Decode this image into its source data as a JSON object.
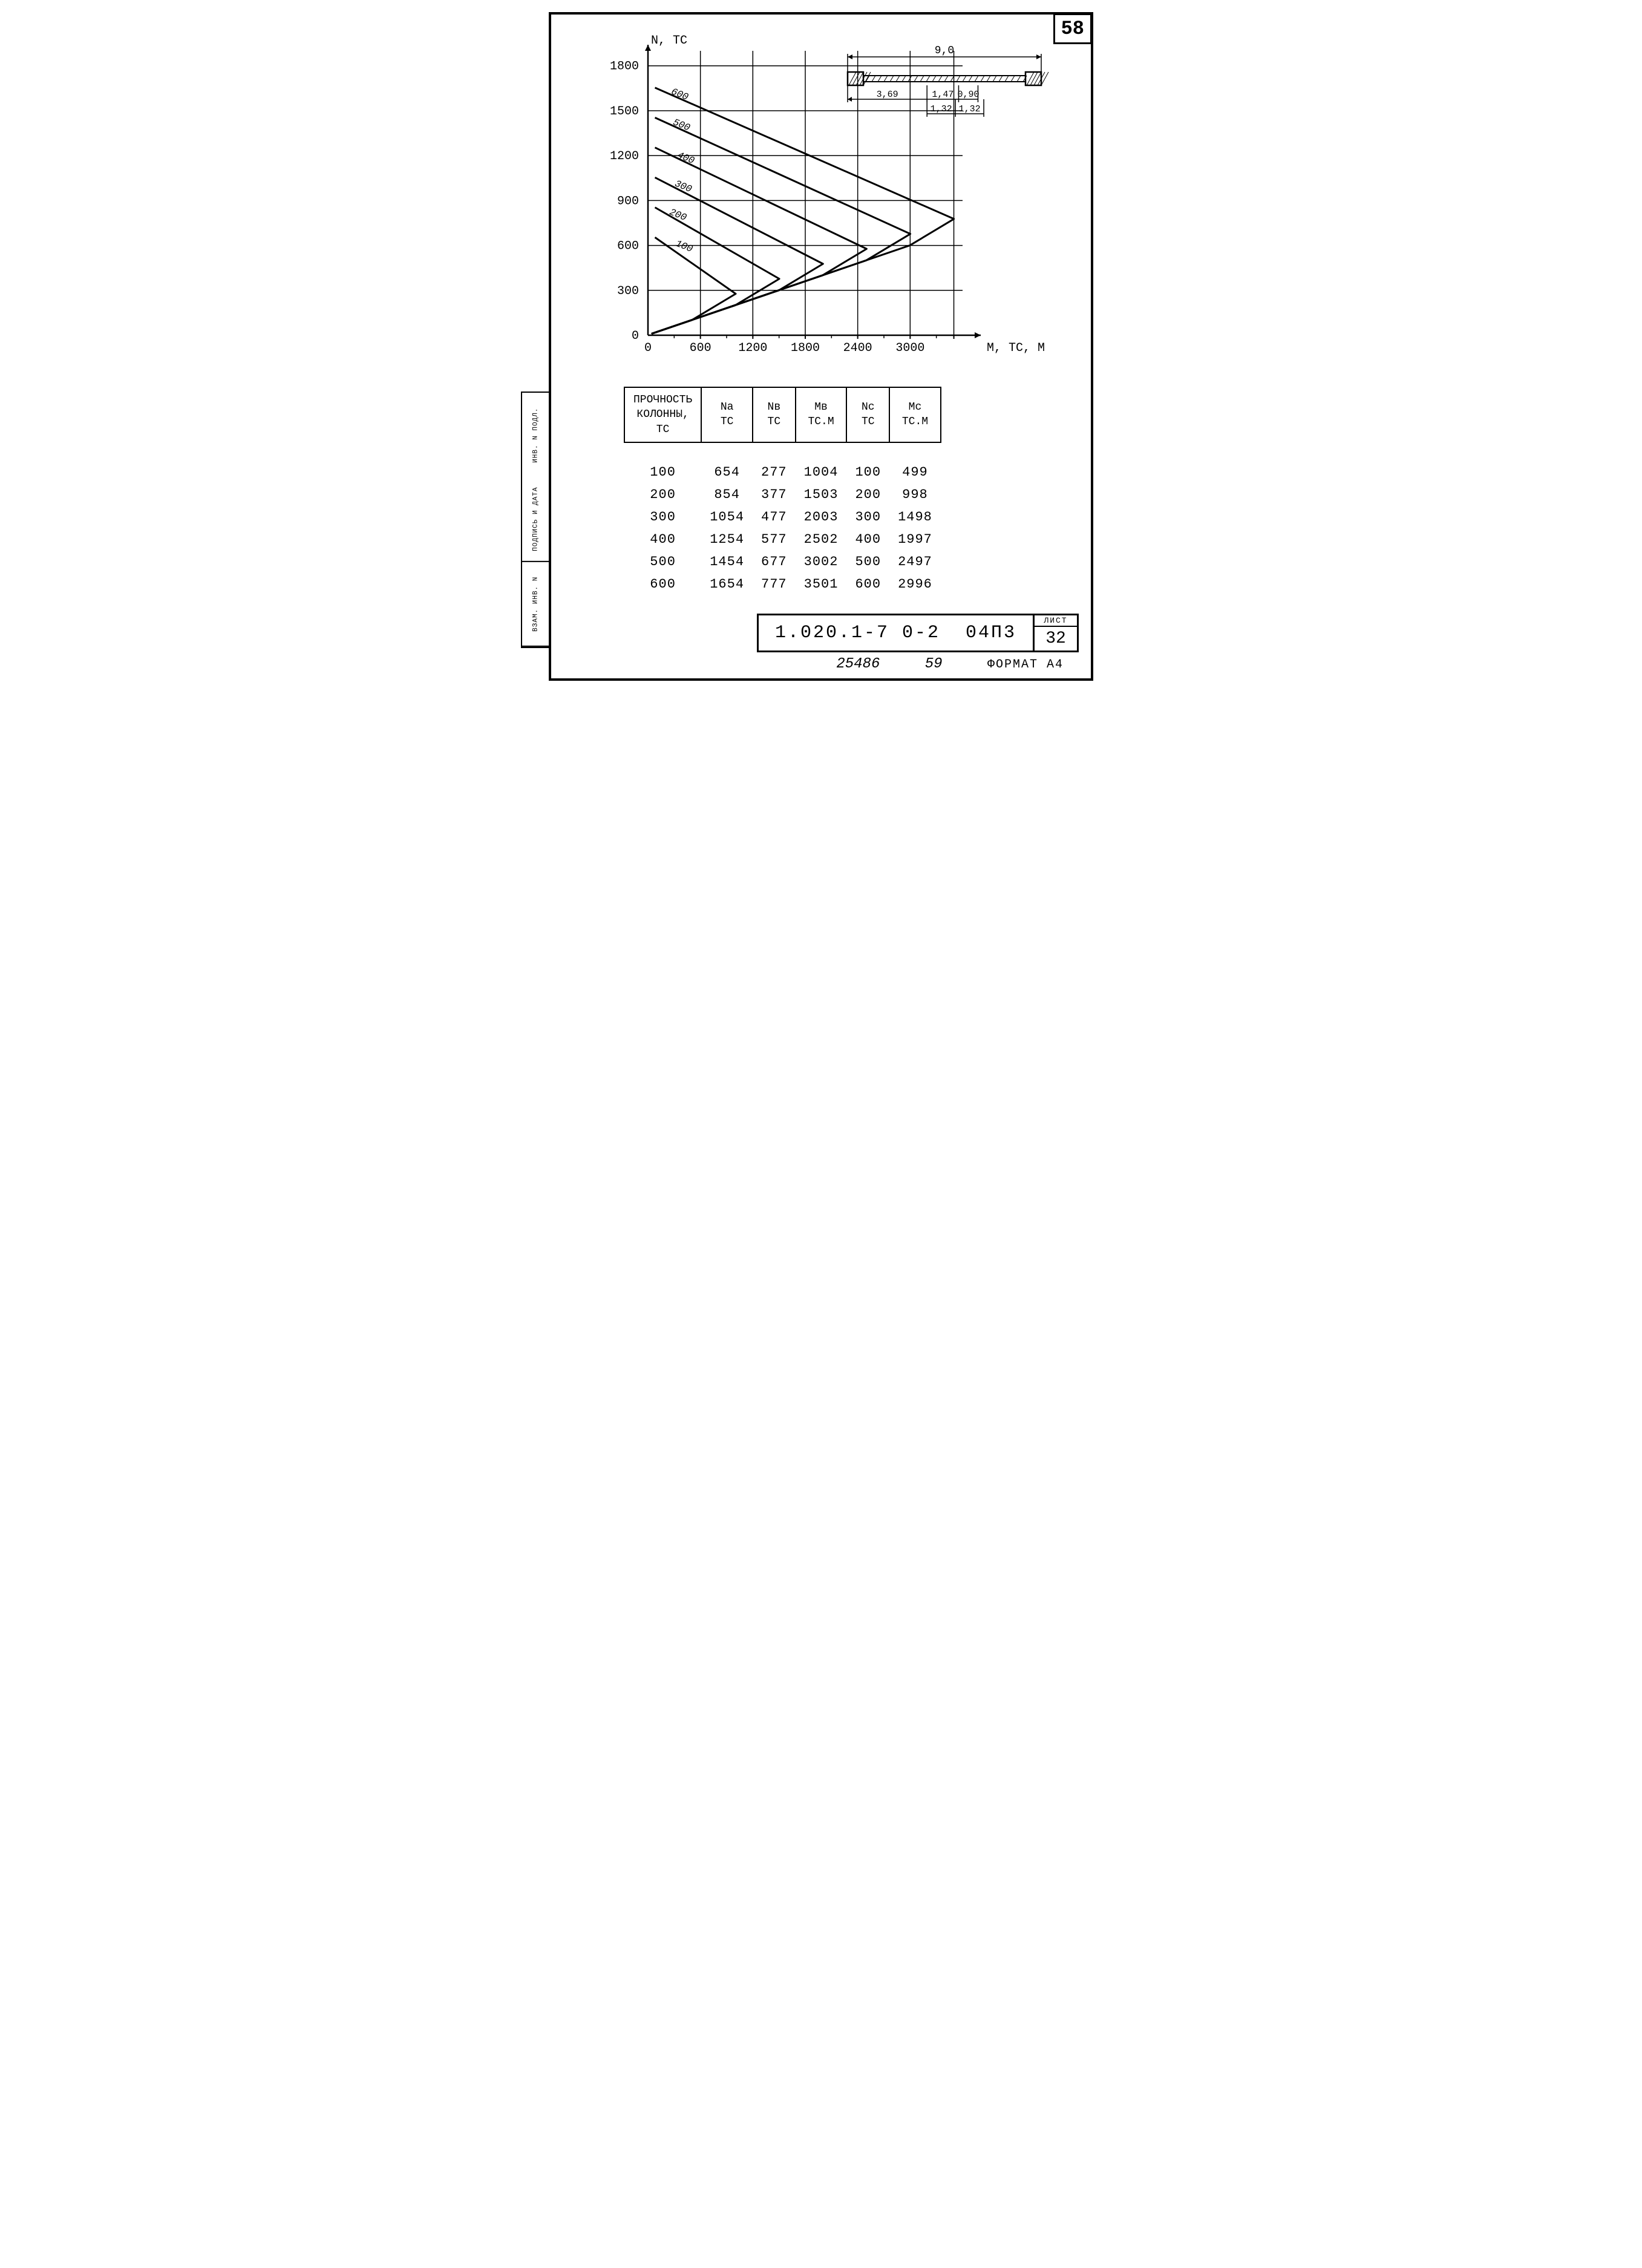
{
  "page_number_top": "58",
  "left_stamps": [
    "ИНВ. N ПОДЛ.",
    "ПОДПИСЬ И ДАТА",
    "ВЗАМ. ИНВ. N"
  ],
  "chart": {
    "y_label": "N, ТС",
    "x_label": "М, ТС, М",
    "y_ticks": [
      "0",
      "300",
      "600",
      "900",
      "1200",
      "1500",
      "1800"
    ],
    "x_ticks": [
      "0",
      "600",
      "1200",
      "1800",
      "2400",
      "3000"
    ],
    "xlim": [
      0,
      3600
    ],
    "ylim": [
      0,
      1900
    ],
    "grid_y": [
      300,
      600,
      900,
      1200,
      1500,
      1800
    ],
    "grid_x": [
      600,
      1200,
      1800,
      2400,
      3000,
      3500
    ],
    "line_color": "#000000",
    "line_width": 3,
    "bg_color": "#ffffff",
    "curves": [
      {
        "label": "100",
        "pts": [
          [
            80,
            654
          ],
          [
            1004,
            277
          ],
          [
            499,
            100
          ],
          [
            40,
            10
          ]
        ],
        "label_at": [
          310,
          600
        ]
      },
      {
        "label": "200",
        "pts": [
          [
            80,
            854
          ],
          [
            1503,
            377
          ],
          [
            998,
            200
          ],
          [
            40,
            10
          ]
        ],
        "label_at": [
          240,
          810
        ]
      },
      {
        "label": "300",
        "pts": [
          [
            80,
            1054
          ],
          [
            2003,
            477
          ],
          [
            1498,
            300
          ],
          [
            40,
            10
          ]
        ],
        "label_at": [
          300,
          1000
        ]
      },
      {
        "label": "400",
        "pts": [
          [
            80,
            1254
          ],
          [
            2502,
            577
          ],
          [
            1997,
            400
          ],
          [
            40,
            10
          ]
        ],
        "label_at": [
          330,
          1190
        ]
      },
      {
        "label": "500",
        "pts": [
          [
            80,
            1454
          ],
          [
            3002,
            677
          ],
          [
            2497,
            500
          ],
          [
            40,
            10
          ]
        ],
        "label_at": [
          280,
          1410
        ]
      },
      {
        "label": "600",
        "pts": [
          [
            80,
            1654
          ],
          [
            3501,
            777
          ],
          [
            2996,
            600
          ],
          [
            40,
            10
          ]
        ],
        "label_at": [
          260,
          1615
        ]
      }
    ]
  },
  "diagram": {
    "total": "9,0",
    "dims_top": [
      "3,69",
      "1,47",
      "0,90"
    ],
    "dims_bot": [
      "1,32",
      "1,32"
    ]
  },
  "table": {
    "headers": [
      "ПРОЧНОСТЬ\nКОЛОННЫ,\nТС",
      "Na\nТС",
      "Nв\nТС",
      "Мв\nТС.М",
      "Nс\nТС",
      "Мс\nТС.М"
    ],
    "rows": [
      [
        "100",
        "654",
        "277",
        "1004",
        "100",
        "499"
      ],
      [
        "200",
        "854",
        "377",
        "1503",
        "200",
        "998"
      ],
      [
        "300",
        "1054",
        "477",
        "2003",
        "300",
        "1498"
      ],
      [
        "400",
        "1254",
        "577",
        "2502",
        "400",
        "1997"
      ],
      [
        "500",
        "1454",
        "677",
        "3002",
        "500",
        "2497"
      ],
      [
        "600",
        "1654",
        "777",
        "3501",
        "600",
        "2996"
      ]
    ]
  },
  "title_block": {
    "code": "1.020.1-7 0-2  04П3",
    "list_label": "ЛИСТ",
    "list_number": "32"
  },
  "footer": {
    "serial": "25486",
    "page": "59",
    "format": "ФОРМАТ А4"
  }
}
